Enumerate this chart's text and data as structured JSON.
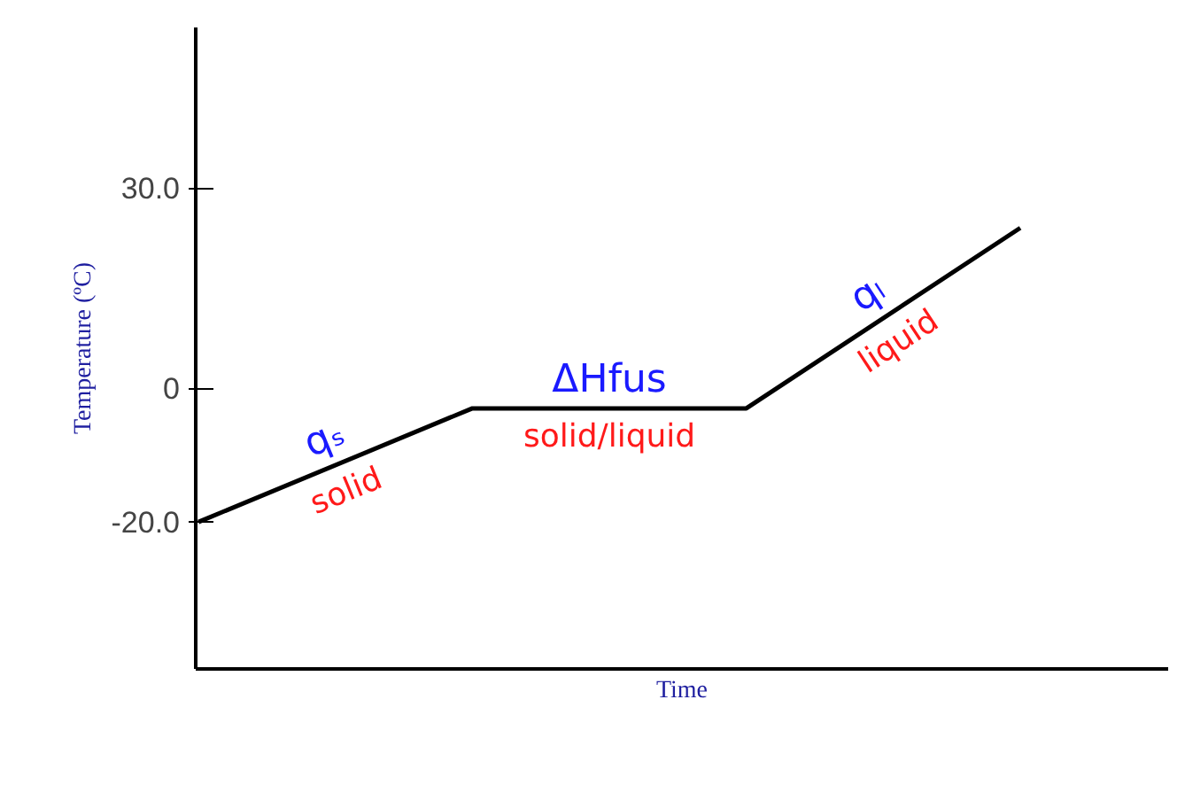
{
  "chart_data": {
    "type": "line",
    "ylabel": "Temperature (ºC)",
    "xlabel": "Time",
    "categories": [
      null,
      null,
      null,
      null
    ],
    "series": [
      {
        "color": "#000000",
        "values": [
          -20,
          -3,
          -3,
          24
        ]
      }
    ],
    "ylim": [
      -42,
      54
    ],
    "yticks": [
      {
        "value": -20,
        "label": "-20.0"
      },
      0,
      {
        "value": 30,
        "label": "30.0"
      }
    ],
    "grid": false,
    "annotations": [
      "qₛ",
      "solid",
      "ΔHfus",
      "solid/liquid",
      "qₗ",
      "liquid"
    ]
  }
}
